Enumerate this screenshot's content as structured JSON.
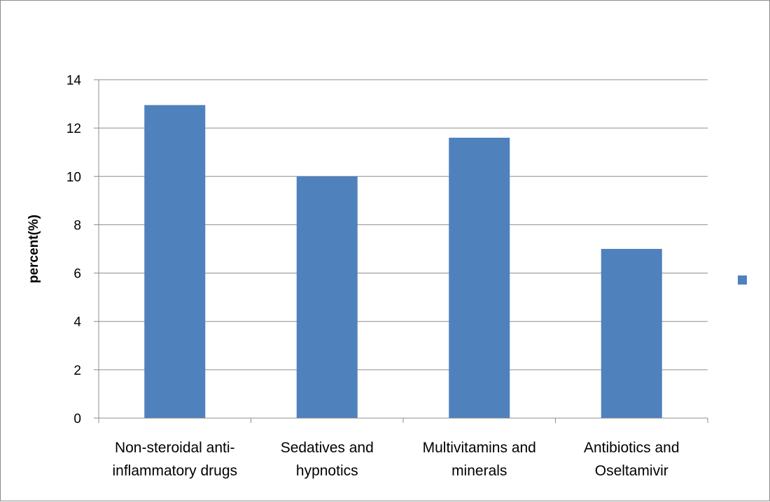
{
  "chart_data": {
    "type": "bar",
    "title": "",
    "xlabel": "",
    "ylabel": "percent(%)",
    "ylim": [
      0,
      14
    ],
    "yticks": [
      0,
      2,
      4,
      6,
      8,
      10,
      12,
      14
    ],
    "grid": true,
    "legend": "right",
    "categories": [
      [
        "Non-steroidal anti-",
        "inflammatory drugs"
      ],
      [
        "Sedatives and",
        "hypnotics"
      ],
      [
        "Multivitamins and",
        "minerals"
      ],
      [
        "Antibiotics and",
        "Oseltamivir"
      ]
    ],
    "series": [
      {
        "values": [
          12.95,
          10.0,
          11.6,
          7.0
        ],
        "color": "#4f81bd"
      }
    ]
  }
}
